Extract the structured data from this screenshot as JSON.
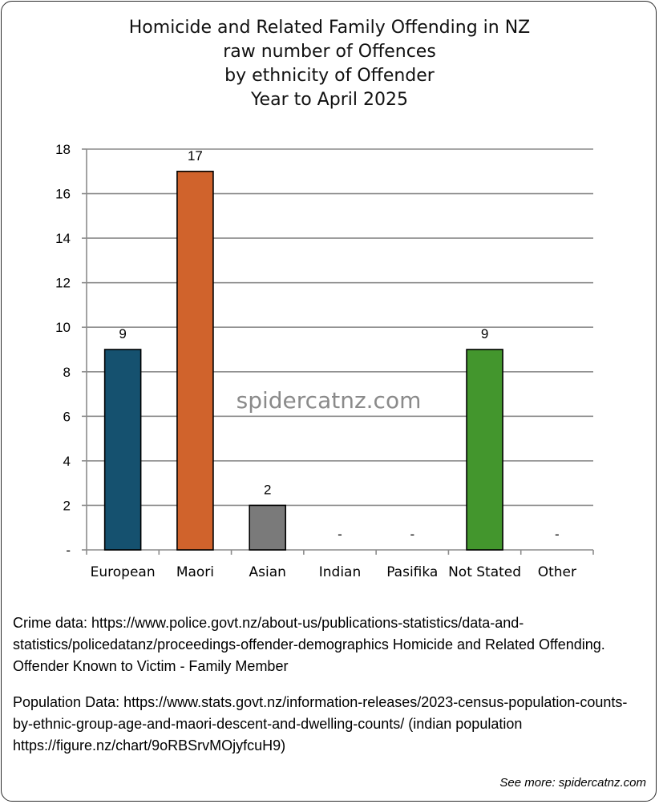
{
  "chart_data": {
    "type": "bar",
    "title": [
      "Homicide and Related Family Offending in NZ",
      "raw number of Offences",
      "by ethnicity of Offender",
      "Year to April 2025"
    ],
    "categories": [
      "European",
      "Maori",
      "Asian",
      "Indian",
      "Pasifika",
      "Not Stated",
      "Other"
    ],
    "values": [
      9,
      17,
      2,
      0,
      0,
      9,
      0
    ],
    "data_labels": [
      "9",
      "17",
      "2",
      "-",
      "-",
      "9",
      "-"
    ],
    "colors": [
      "#15516f",
      "#d0632c",
      "#7a7a7a",
      "#7a7a7a",
      "#7a7a7a",
      "#43962d",
      "#7a7a7a"
    ],
    "ylim": [
      0,
      18
    ],
    "yticks": [
      0,
      2,
      4,
      6,
      8,
      10,
      12,
      14,
      16,
      18
    ],
    "ytick_labels": [
      "-",
      "2",
      "4",
      "6",
      "8",
      "10",
      "12",
      "14",
      "16",
      "18"
    ],
    "grid": true,
    "xlabel": "",
    "ylabel": ""
  },
  "watermark": "spidercatnz.com",
  "notes": {
    "crime": "Crime data: https://www.police.govt.nz/about-us/publications-statistics/data-and-statistics/policedatanz/proceedings-offender-demographics Homicide and Related Offending. Offender Known to Victim - Family Member",
    "population": "Population Data: https://www.stats.govt.nz/information-releases/2023-census-population-counts-by-ethnic-group-age-and-maori-descent-and-dwelling-counts/ (indian population https://figure.nz/chart/9oRBSrvMOjyfcuH9)"
  },
  "see_more": "See more: spidercatnz.com"
}
